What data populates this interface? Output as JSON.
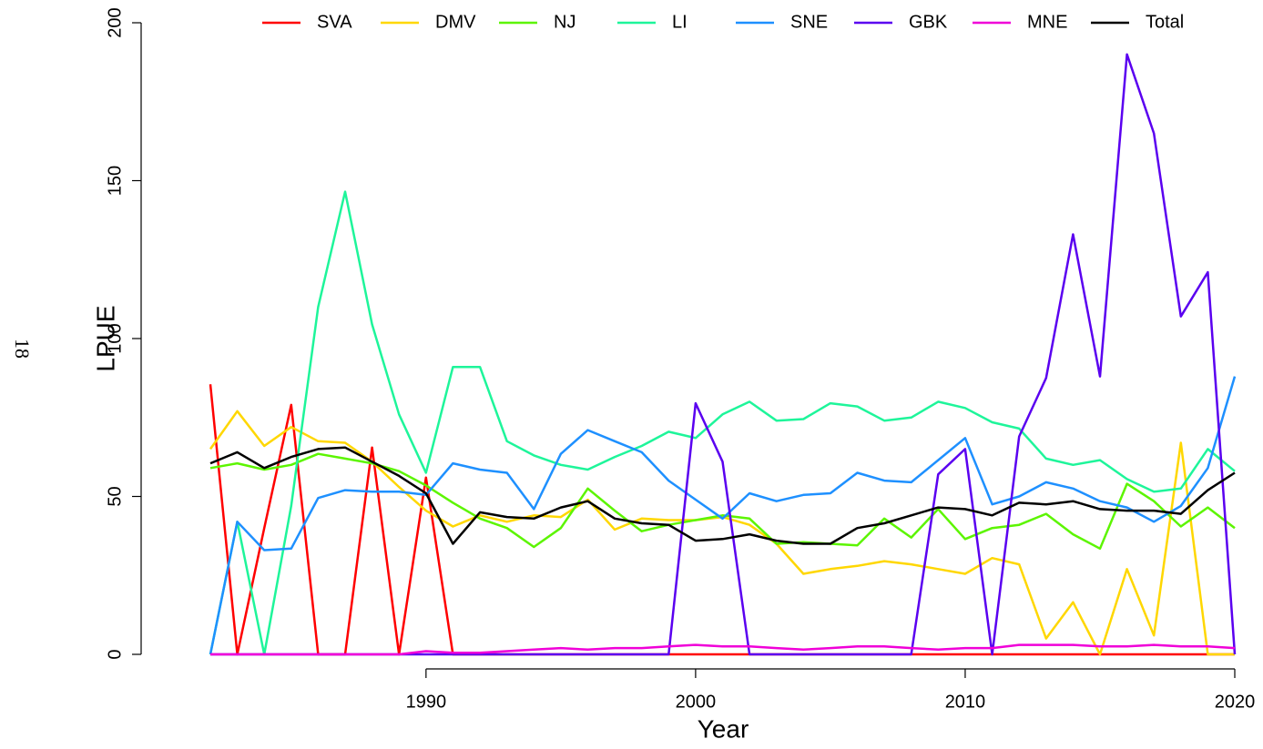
{
  "page_number": "18",
  "chart_data": {
    "type": "line",
    "x_label": "Year",
    "y_label": "LPUE",
    "x": [
      1982,
      1983,
      1984,
      1985,
      1986,
      1987,
      1988,
      1989,
      1990,
      1991,
      1992,
      1993,
      1994,
      1995,
      1996,
      1997,
      1998,
      1999,
      2000,
      2001,
      2002,
      2003,
      2004,
      2005,
      2006,
      2007,
      2008,
      2009,
      2010,
      2011,
      2012,
      2013,
      2014,
      2015,
      2016,
      2017,
      2018,
      2019,
      2020
    ],
    "xlim": [
      1982,
      2020
    ],
    "xticks": [
      1990,
      2000,
      2010,
      2020
    ],
    "ylim": [
      0,
      200
    ],
    "yticks": [
      0,
      50,
      100,
      150,
      200
    ],
    "legend": "top",
    "series": [
      {
        "name": "SVA",
        "color": "#ff0000",
        "values": [
          85.5,
          0,
          40,
          79,
          0,
          0,
          65.5,
          0,
          56,
          0,
          0,
          0,
          0,
          0,
          0,
          0,
          0,
          0,
          0,
          0,
          0,
          0,
          0,
          0,
          0,
          0,
          0,
          0,
          0,
          0,
          0,
          0,
          0,
          0,
          0,
          0,
          0,
          0,
          0
        ]
      },
      {
        "name": "DMV",
        "color": "#ffd700",
        "values": [
          65,
          77,
          66,
          72,
          67.5,
          67,
          61,
          53,
          45.5,
          40.5,
          44,
          42,
          44,
          43.5,
          49,
          39.5,
          43,
          42.5,
          42.5,
          43.5,
          41,
          35,
          25.5,
          27,
          28,
          29.5,
          28.5,
          27,
          25.5,
          30.5,
          28.5,
          5,
          16.5,
          0,
          27,
          6,
          67,
          0,
          0
        ]
      },
      {
        "name": "NJ",
        "color": "#5cf500",
        "values": [
          59,
          60.5,
          58.5,
          60,
          63.5,
          62,
          60.5,
          58,
          53.5,
          48,
          43,
          40,
          34,
          40,
          52.5,
          45.5,
          39,
          41,
          42.5,
          44,
          43,
          35,
          35.5,
          35,
          34.5,
          43,
          37,
          46,
          36.5,
          40,
          41,
          44.5,
          38,
          33.5,
          54,
          48.5,
          40.5,
          46.5,
          40
        ]
      },
      {
        "name": "LI",
        "color": "#1ef59a",
        "values": [
          0,
          42,
          0,
          47,
          110,
          146.5,
          104.5,
          76,
          57.5,
          91,
          91,
          67.5,
          63,
          60,
          58.5,
          62.5,
          66,
          70.5,
          68.5,
          76,
          80,
          74,
          74.5,
          79.5,
          78.5,
          74,
          75,
          80,
          78,
          73.5,
          71.5,
          62,
          60,
          61.5,
          55.5,
          51.5,
          52.5,
          65,
          58
        ]
      },
      {
        "name": "SNE",
        "color": "#1e90ff",
        "values": [
          0,
          42,
          33,
          33.5,
          49.5,
          52,
          51.5,
          51.5,
          50.5,
          60.5,
          58.5,
          57.5,
          46,
          63.5,
          71,
          67.5,
          64,
          55,
          49,
          43,
          51,
          48.5,
          50.5,
          51,
          57.5,
          55,
          54.5,
          61.5,
          68.5,
          47.5,
          50,
          54.5,
          52.5,
          48.5,
          46.5,
          42,
          47,
          59,
          88
        ]
      },
      {
        "name": "GBK",
        "color": "#5a00f0",
        "values": [
          0,
          0,
          0,
          0,
          0,
          0,
          0,
          0,
          0,
          0,
          0,
          0,
          0,
          0,
          0,
          0,
          0,
          0,
          79.5,
          61,
          0,
          0,
          0,
          0,
          0,
          0,
          0,
          57,
          65,
          0,
          69,
          87.5,
          133,
          88,
          190,
          165,
          107,
          121,
          0
        ]
      },
      {
        "name": "MNE",
        "color": "#f000d8",
        "values": [
          0,
          0,
          0,
          0,
          0,
          0,
          0,
          0,
          1,
          0.5,
          0.5,
          1,
          1.5,
          2,
          1.5,
          2,
          2,
          2.5,
          3,
          2.5,
          2.5,
          2,
          1.5,
          2,
          2.5,
          2.5,
          2,
          1.5,
          2,
          2,
          3,
          3,
          3,
          2.5,
          2.5,
          3,
          2.5,
          2.5,
          2
        ]
      },
      {
        "name": "Total",
        "color": "#000000",
        "values": [
          60.5,
          64,
          59,
          62.5,
          65,
          65.5,
          61,
          56.5,
          51,
          35,
          45,
          43.5,
          43,
          46.5,
          48.5,
          43,
          41.5,
          41,
          36,
          36.5,
          38,
          36,
          35,
          35,
          40,
          41.5,
          44,
          46.5,
          46,
          44,
          48,
          47.5,
          48.5,
          46,
          45.5,
          45.5,
          44.5,
          52,
          57.5
        ]
      }
    ]
  }
}
